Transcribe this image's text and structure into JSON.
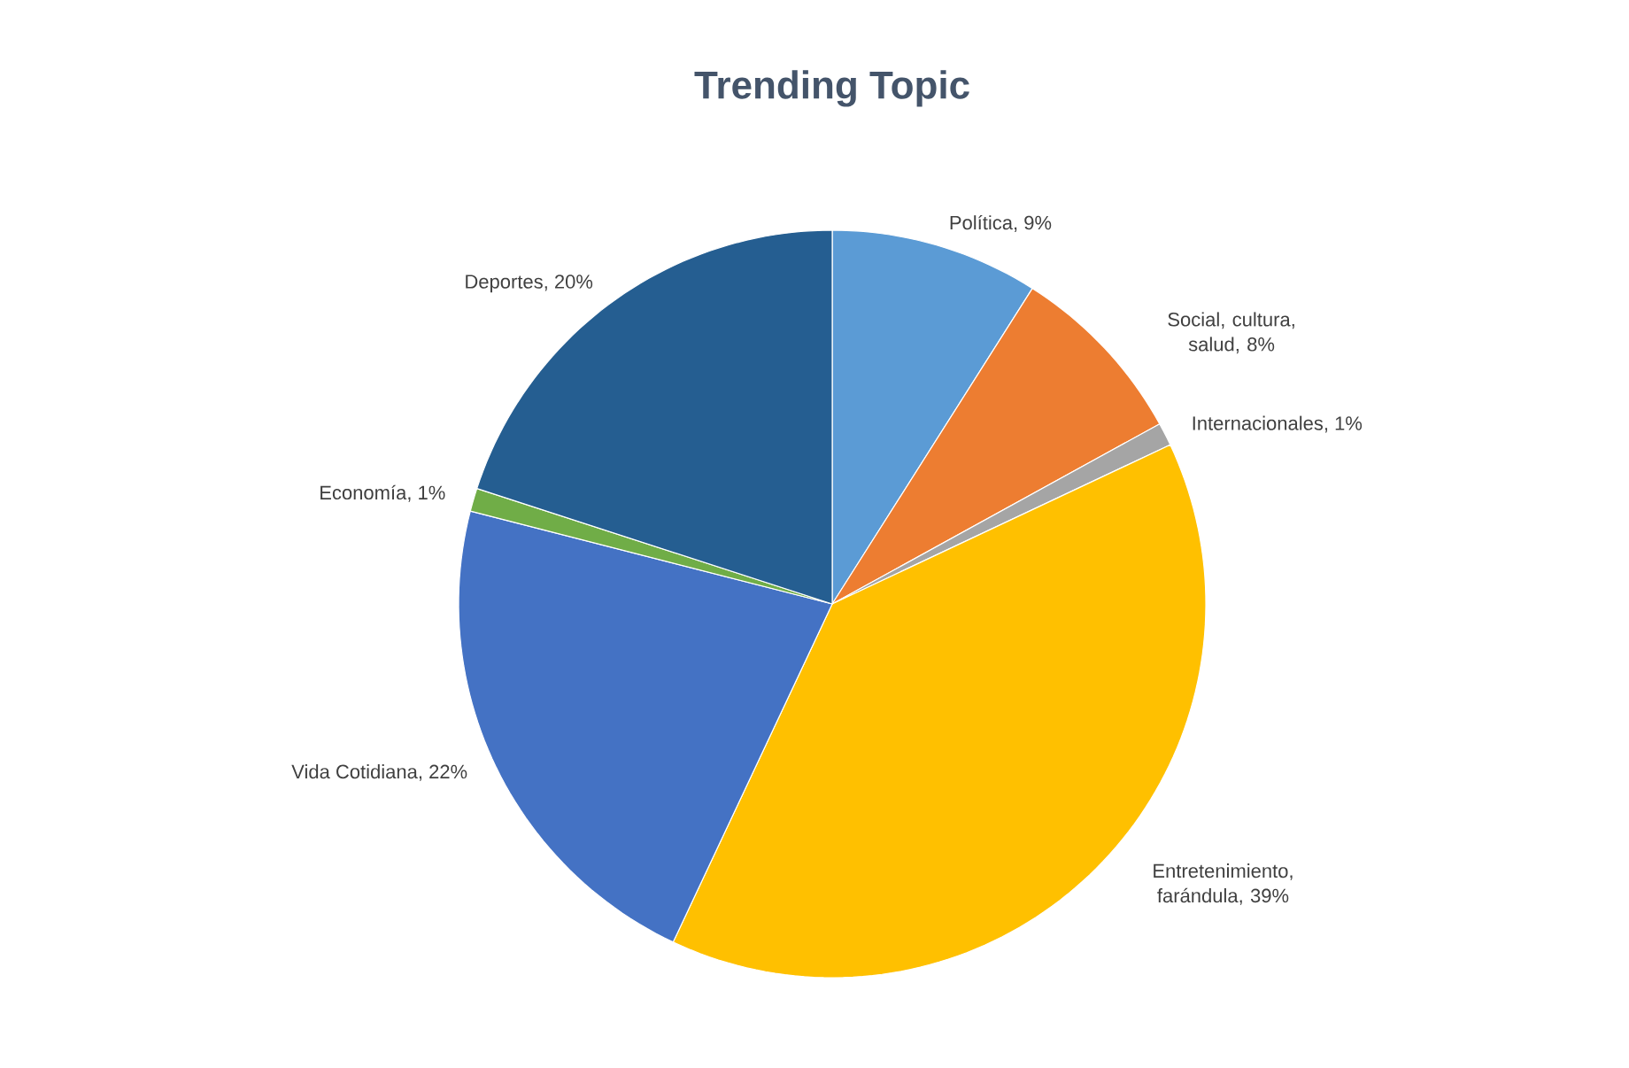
{
  "chart_data": {
    "type": "pie",
    "title": "Trending Topic",
    "categories": [
      "Política",
      "Social, cultura, salud",
      "Internacionales",
      "Entretenimiento, farándula",
      "Vida Cotidiana",
      "Economía",
      "Deportes"
    ],
    "values": [
      9,
      8,
      1,
      39,
      22,
      1,
      20
    ],
    "value_labels": [
      ", 9%",
      ", 8%",
      ", 1%",
      ", 39%",
      ", 22%",
      ", 1%",
      ", 20%"
    ],
    "colors": [
      "#5b9bd5",
      "#ed7d31",
      "#a5a5a5",
      "#ffc000",
      "#4472c4",
      "#70ad47",
      "#255e91"
    ]
  }
}
